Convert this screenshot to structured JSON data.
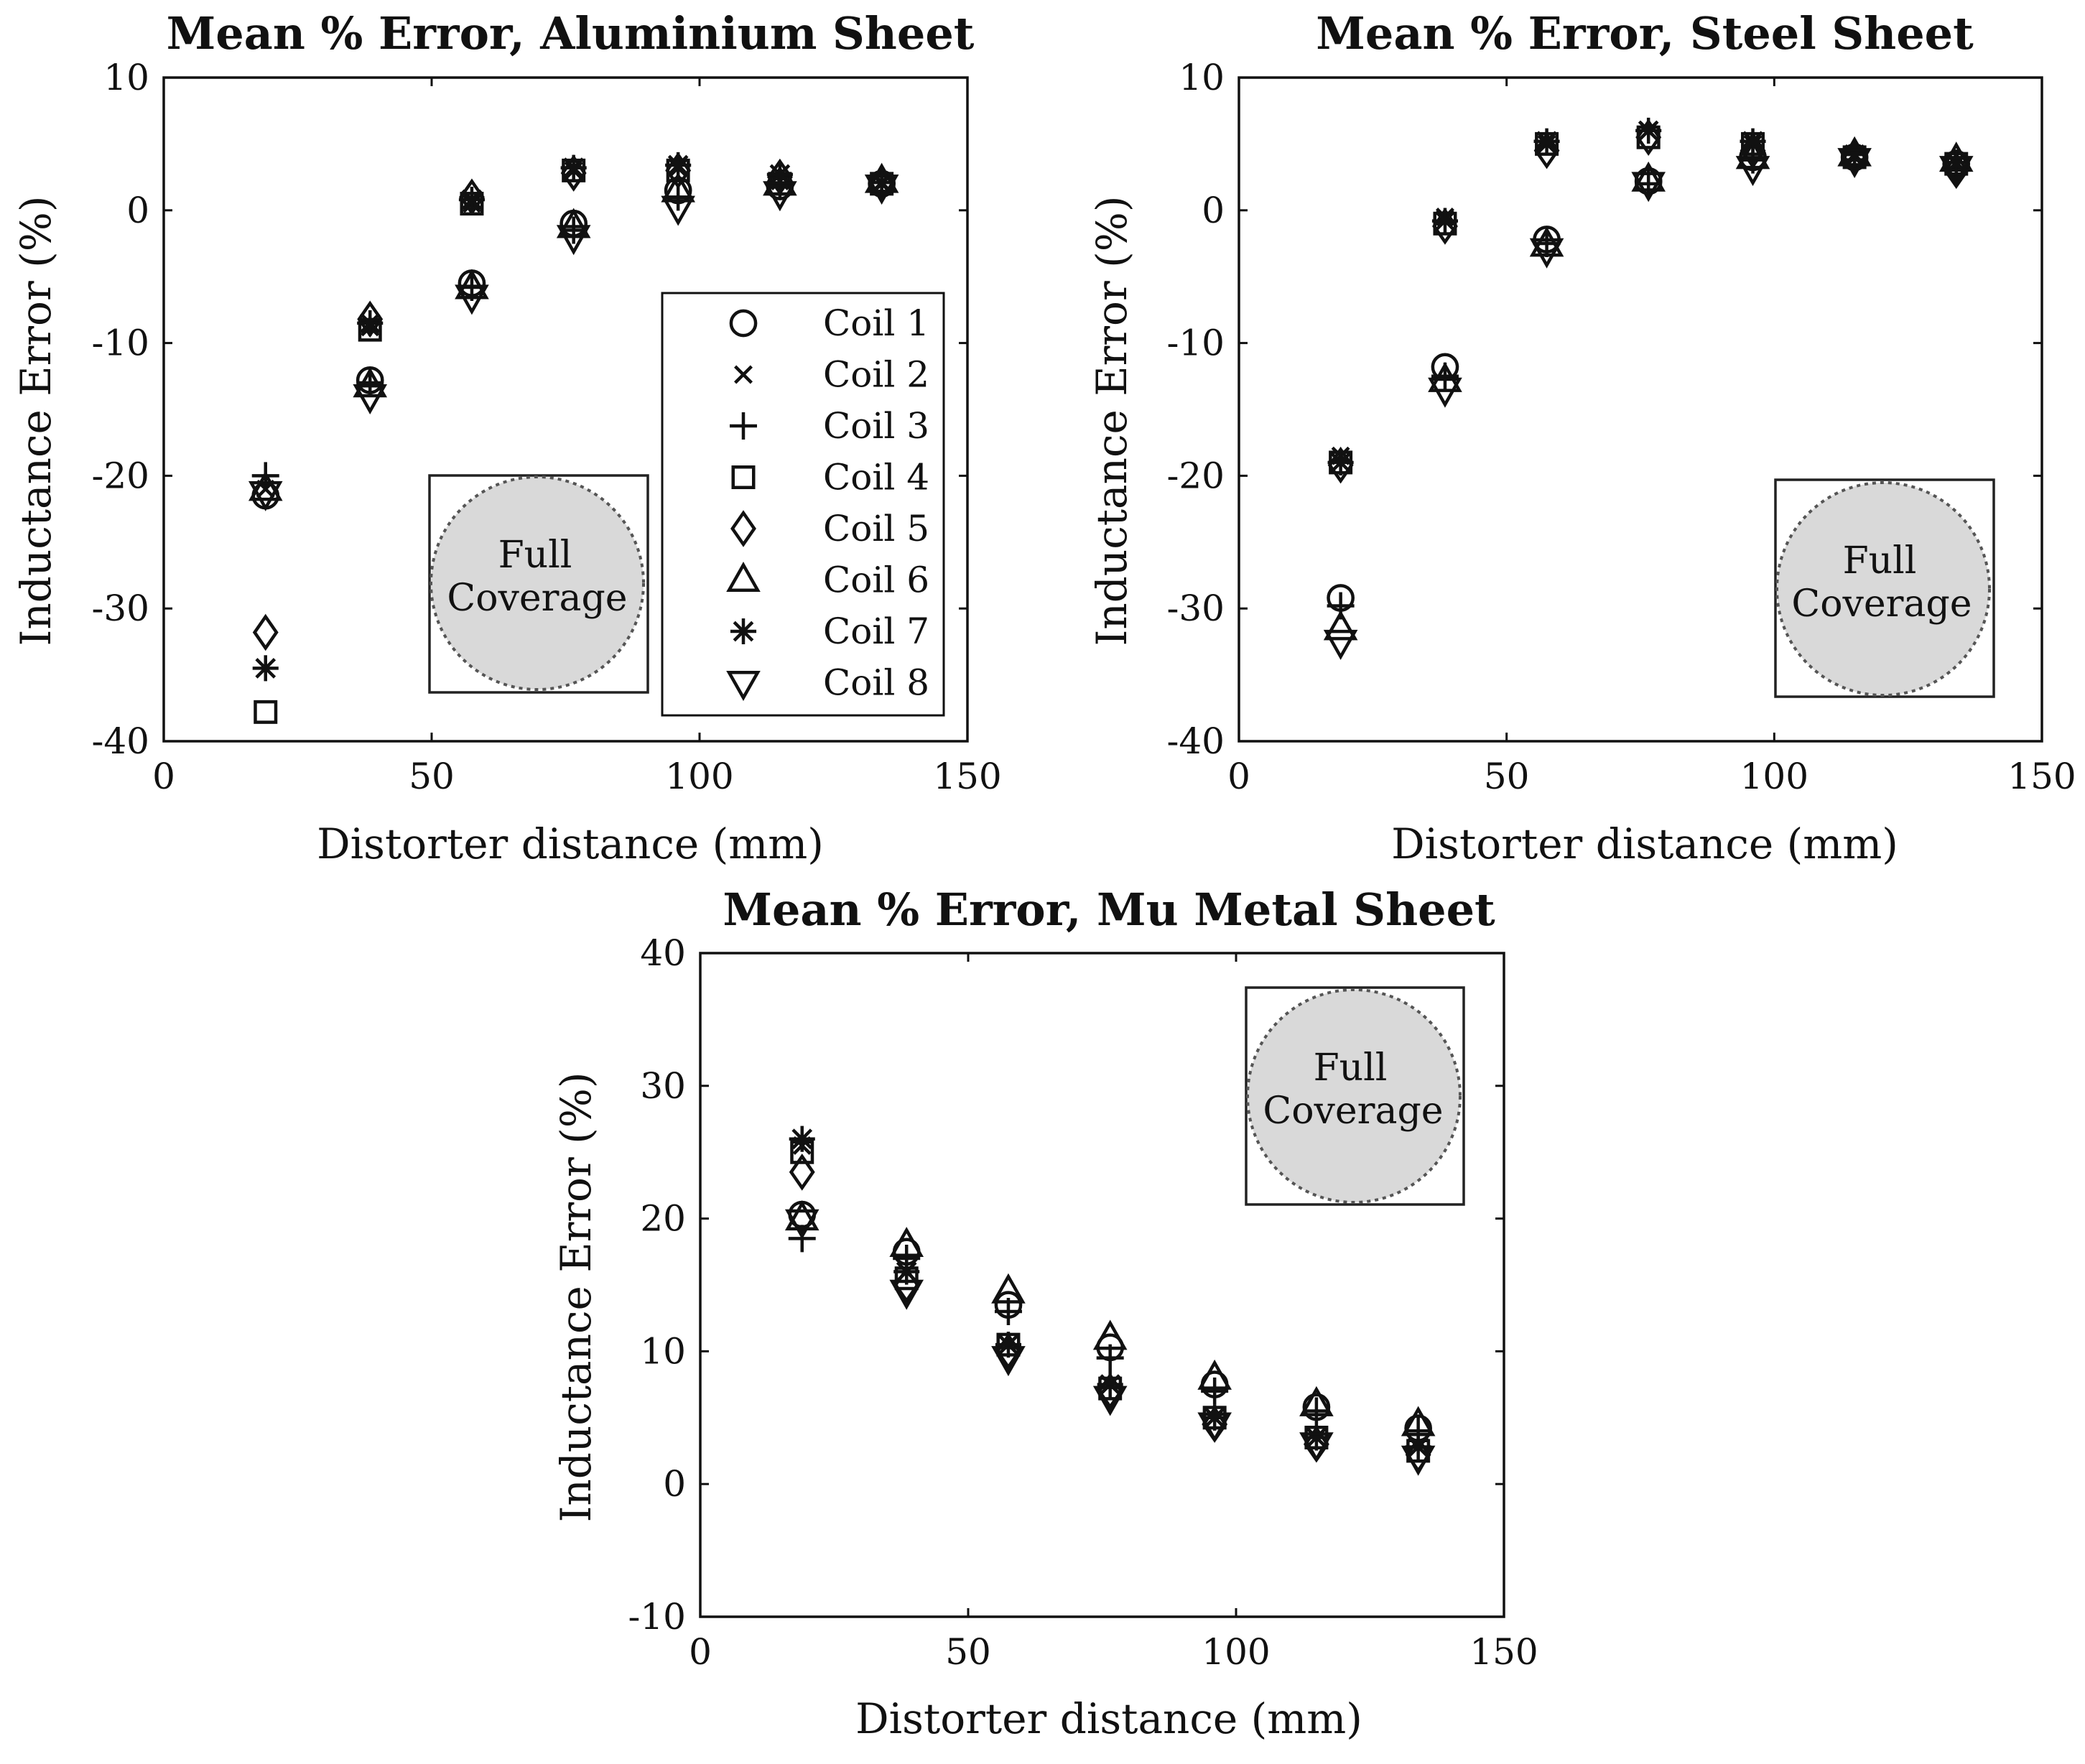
{
  "colors": {
    "marker": "#111111",
    "axis": "#111111",
    "inset_fill": "#d9d9d9",
    "inset_dot": "#555555",
    "background": "#ffffff"
  },
  "legend": {
    "entries": [
      {
        "label": "Coil 1",
        "marker": "circle"
      },
      {
        "label": "Coil 2",
        "marker": "x"
      },
      {
        "label": "Coil 3",
        "marker": "plus"
      },
      {
        "label": "Coil 4",
        "marker": "square"
      },
      {
        "label": "Coil 5",
        "marker": "diamond"
      },
      {
        "label": "Coil 6",
        "marker": "triangle-up"
      },
      {
        "label": "Coil 7",
        "marker": "asterisk"
      },
      {
        "label": "Coil 8",
        "marker": "triangle-down"
      }
    ]
  },
  "chart_data": [
    {
      "type": "scatter",
      "title": "Mean % Error, Aluminium Sheet",
      "xlabel": "Distorter distance (mm)",
      "ylabel": "Inductance Error (%)",
      "xlim": [
        0,
        150
      ],
      "ylim": [
        -40,
        10
      ],
      "xticks": [
        0,
        50,
        100,
        150
      ],
      "yticks": [
        -40,
        -30,
        -20,
        -10,
        0,
        10
      ],
      "inset": "Full Coverage",
      "x": [
        19,
        38.5,
        57.5,
        76.5,
        96,
        115,
        134
      ],
      "series": [
        {
          "name": "Coil 1",
          "values": [
            -21.5,
            -12.8,
            -5.5,
            -1.0,
            1.5,
            1.8,
            2.0
          ]
        },
        {
          "name": "Coil 2",
          "values": [
            -21.0,
            -8.8,
            0.5,
            3.0,
            3.2,
            2.2,
            2.0
          ]
        },
        {
          "name": "Coil 3",
          "values": [
            -20.0,
            -13.0,
            -5.8,
            -1.5,
            1.0,
            1.8,
            2.1
          ]
        },
        {
          "name": "Coil 4",
          "values": [
            -37.8,
            -9.0,
            0.5,
            3.0,
            3.0,
            2.0,
            2.0
          ]
        },
        {
          "name": "Coil 5",
          "values": [
            -31.8,
            -8.2,
            1.0,
            2.8,
            3.0,
            2.5,
            2.0
          ]
        },
        {
          "name": "Coil 6",
          "values": [
            -21.0,
            -13.2,
            -5.8,
            -1.2,
            1.5,
            2.0,
            2.2
          ]
        },
        {
          "name": "Coil 7",
          "values": [
            -34.5,
            -8.5,
            0.8,
            3.2,
            3.4,
            2.7,
            2.1
          ]
        },
        {
          "name": "Coil 8",
          "values": [
            -21.3,
            -14.0,
            -6.5,
            -2.0,
            0.2,
            1.3,
            1.8
          ]
        }
      ]
    },
    {
      "type": "scatter",
      "title": "Mean % Error, Steel Sheet",
      "xlabel": "Distorter distance (mm)",
      "ylabel": "Inductance Error (%)",
      "xlim": [
        0,
        150
      ],
      "ylim": [
        -40,
        10
      ],
      "xticks": [
        0,
        50,
        100,
        150
      ],
      "yticks": [
        -40,
        -30,
        -20,
        -10,
        0,
        10
      ],
      "inset": "Full Coverage",
      "x": [
        19,
        38.5,
        57.5,
        76.5,
        96,
        115,
        134
      ],
      "series": [
        {
          "name": "Coil 1",
          "values": [
            -29.2,
            -11.8,
            -2.2,
            2.2,
            4.0,
            4.0,
            3.5
          ]
        },
        {
          "name": "Coil 2",
          "values": [
            -18.5,
            -0.5,
            5.0,
            6.0,
            5.0,
            4.0,
            3.5
          ]
        },
        {
          "name": "Coil 3",
          "values": [
            -29.8,
            -12.5,
            -2.5,
            2.0,
            3.8,
            3.8,
            3.2
          ]
        },
        {
          "name": "Coil 4",
          "values": [
            -19.0,
            -1.0,
            5.0,
            5.5,
            5.0,
            4.0,
            3.5
          ]
        },
        {
          "name": "Coil 5",
          "values": [
            -19.2,
            -1.2,
            4.5,
            5.5,
            4.5,
            4.0,
            3.0
          ]
        },
        {
          "name": "Coil 6",
          "values": [
            -31.5,
            -12.8,
            -2.6,
            2.3,
            4.0,
            4.2,
            3.8
          ]
        },
        {
          "name": "Coil 7",
          "values": [
            -19.0,
            -0.8,
            5.2,
            6.0,
            5.2,
            4.2,
            3.6
          ]
        },
        {
          "name": "Coil 8",
          "values": [
            -32.5,
            -13.5,
            -3.0,
            2.0,
            3.2,
            3.8,
            3.2
          ]
        }
      ]
    },
    {
      "type": "scatter",
      "title": "Mean % Error, Mu Metal Sheet",
      "xlabel": "Distorter distance (mm)",
      "ylabel": "Inductance Error (%)",
      "xlim": [
        0,
        150
      ],
      "ylim": [
        -10,
        40
      ],
      "xticks": [
        0,
        50,
        100,
        150
      ],
      "yticks": [
        -10,
        0,
        10,
        20,
        30,
        40
      ],
      "inset": "Full Coverage",
      "x": [
        19,
        38.5,
        57.5,
        76.5,
        96,
        115,
        134
      ],
      "series": [
        {
          "name": "Coil 1",
          "values": [
            20.3,
            17.5,
            13.5,
            10.3,
            7.5,
            5.8,
            4.2
          ]
        },
        {
          "name": "Coil 2",
          "values": [
            25.5,
            16.0,
            10.5,
            7.5,
            5.0,
            3.5,
            2.8
          ]
        },
        {
          "name": "Coil 3",
          "values": [
            18.5,
            17.0,
            13.0,
            9.5,
            7.0,
            5.5,
            4.0
          ]
        },
        {
          "name": "Coil 4",
          "values": [
            25.0,
            15.5,
            10.5,
            7.2,
            5.0,
            3.5,
            2.5
          ]
        },
        {
          "name": "Coil 5",
          "values": [
            23.5,
            15.0,
            10.0,
            7.0,
            4.5,
            3.0,
            2.2
          ]
        },
        {
          "name": "Coil 6",
          "values": [
            20.0,
            18.0,
            14.5,
            11.0,
            8.0,
            6.0,
            4.5
          ]
        },
        {
          "name": "Coil 7",
          "values": [
            26.0,
            16.0,
            10.5,
            7.5,
            5.0,
            3.5,
            2.8
          ]
        },
        {
          "name": "Coil 8",
          "values": [
            19.8,
            14.5,
            9.5,
            6.5,
            4.5,
            3.0,
            2.0
          ]
        }
      ]
    }
  ]
}
